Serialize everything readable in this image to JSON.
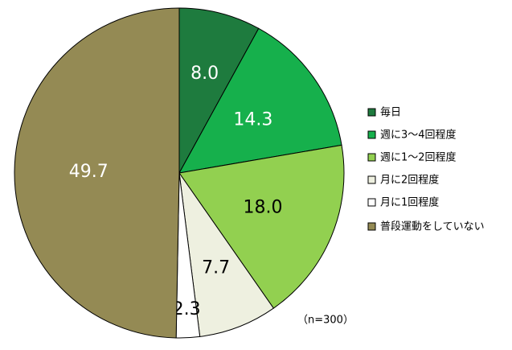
{
  "chart_data": {
    "type": "pie",
    "categories": [
      "毎日",
      "週に3～4回程度",
      "週に1～2回程度",
      "月に2回程度",
      "月に1回程度",
      "普段運動をしていない"
    ],
    "values": [
      8.0,
      14.3,
      18.0,
      7.7,
      2.3,
      49.7
    ],
    "value_labels": [
      "8.0",
      "14.3",
      "18.0",
      "7.7",
      "2.3",
      "49.7"
    ],
    "colors": [
      "#1e7b3e",
      "#16b04c",
      "#92d050",
      "#eef0e0",
      "#ffffff",
      "#948a54"
    ],
    "annotation": "（n=300）",
    "legend": "right"
  }
}
